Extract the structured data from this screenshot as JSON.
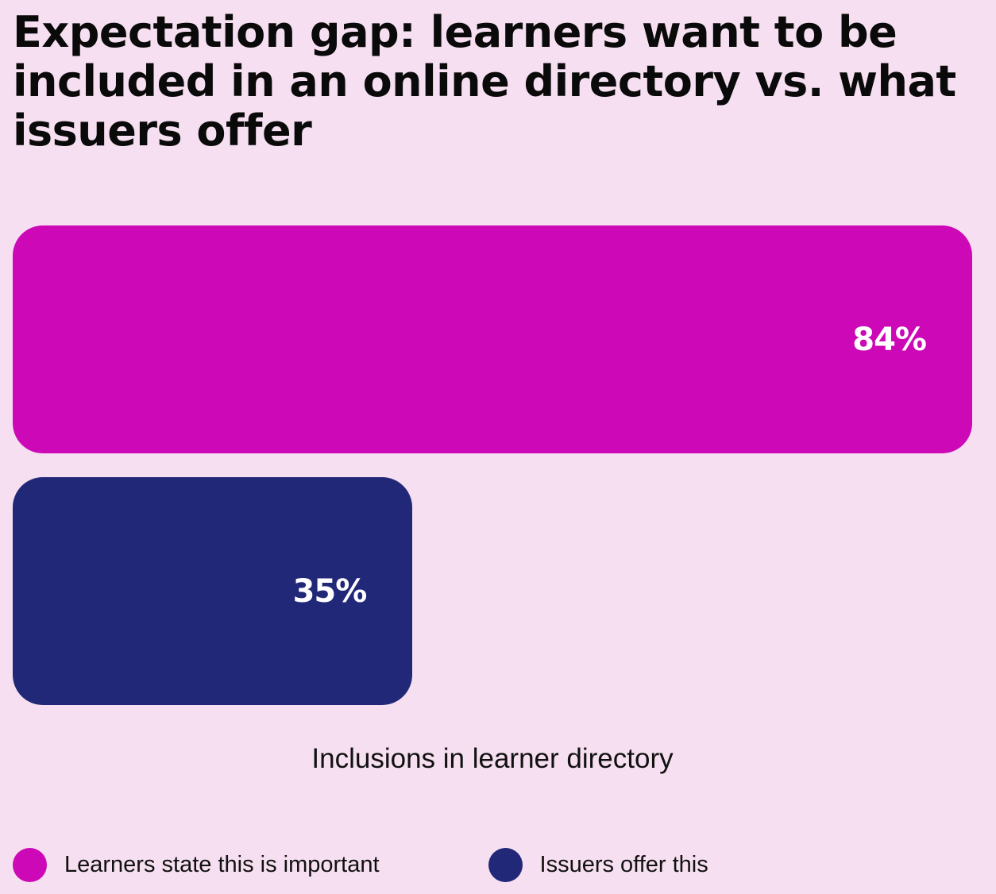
{
  "title": "Expectation gap: learners want to be included in an online directory vs. what issuers offer",
  "chart_data": {
    "type": "bar",
    "orientation": "horizontal",
    "title": "Expectation gap: learners want to be included in an online directory vs. what issuers offer",
    "xlabel": "Inclusions in learner directory",
    "ylabel": "",
    "xlim": [
      0,
      84
    ],
    "grid": false,
    "legend_position": "bottom-left",
    "categories": [
      "Inclusions in learner directory"
    ],
    "series": [
      {
        "name": "Learners state this is important",
        "values": [
          84
        ],
        "label": "84%",
        "color": "#cc08b7"
      },
      {
        "name": "Issuers offer this",
        "values": [
          35
        ],
        "label": "35%",
        "color": "#222878"
      }
    ]
  }
}
